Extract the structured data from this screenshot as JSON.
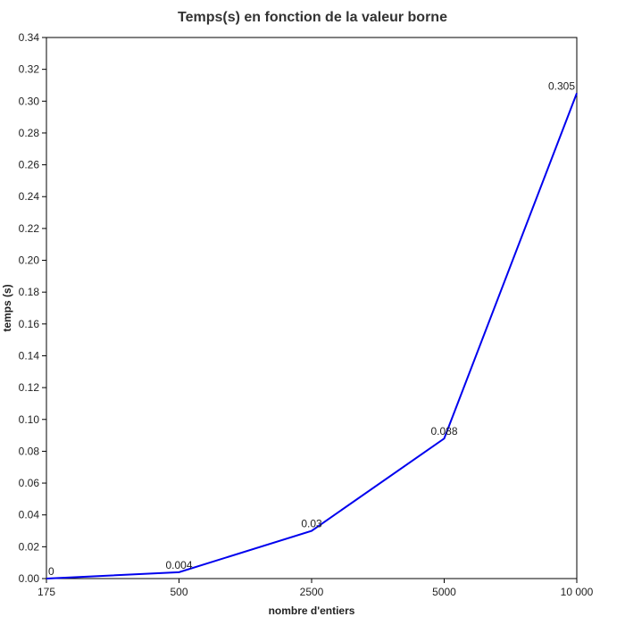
{
  "chart_data": {
    "type": "line",
    "title": "Temps(s) en fonction de la valeur borne",
    "xlabel": "nombre d'entiers",
    "ylabel": "temps (s)",
    "categories": [
      "175",
      "500",
      "2500",
      "5000",
      "10 000"
    ],
    "series": [
      {
        "values": [
          0,
          0.004,
          0.03,
          0.088,
          0.305
        ],
        "data_labels": [
          "0",
          "0.004",
          "0.03",
          "0.088",
          "0.305"
        ],
        "color": "#0000ee"
      }
    ],
    "ylim": [
      0,
      0.34
    ],
    "yticks": [
      "0.00",
      "0.02",
      "0.04",
      "0.06",
      "0.08",
      "0.10",
      "0.12",
      "0.14",
      "0.16",
      "0.18",
      "0.20",
      "0.22",
      "0.24",
      "0.26",
      "0.28",
      "0.30",
      "0.32",
      "0.34"
    ],
    "grid": false,
    "legend": "none"
  }
}
